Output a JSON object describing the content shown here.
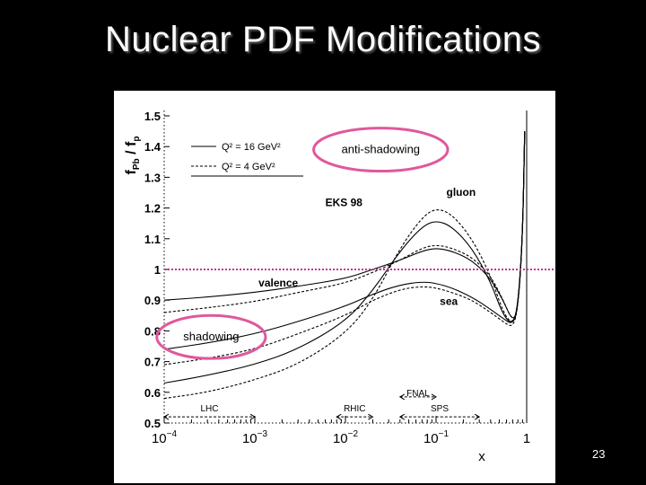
{
  "slide": {
    "title": "Nuclear PDF Modifications",
    "number": "23"
  },
  "chart_data": {
    "type": "line",
    "xscale": "log",
    "xlim": [
      0.0001,
      1
    ],
    "ylim": [
      0.5,
      1.5
    ],
    "xlabel": "x",
    "ylabel_main": "f",
    "ylabel_num_sub": "Pb",
    "ylabel_div": " / f",
    "ylabel_den_sub": "p",
    "x_ticks": [
      {
        "label_base": "10",
        "label_exp": "−4",
        "value": 0.0001
      },
      {
        "label_base": "10",
        "label_exp": "−3",
        "value": 0.001
      },
      {
        "label_base": "10",
        "label_exp": "−2",
        "value": 0.01
      },
      {
        "label_base": "10",
        "label_exp": "−1",
        "value": 0.1
      },
      {
        "label_base": "1",
        "label_exp": "",
        "value": 1
      }
    ],
    "y_ticks": [
      {
        "label": "0.5",
        "value": 0.5
      },
      {
        "label": "0.6",
        "value": 0.6
      },
      {
        "label": "0.7",
        "value": 0.7
      },
      {
        "label": "0.8",
        "value": 0.8
      },
      {
        "label": "0.9",
        "value": 0.9
      },
      {
        "label": "1",
        "value": 1.0
      },
      {
        "label": "1.1",
        "value": 1.1
      },
      {
        "label": "1.2",
        "value": 1.2
      },
      {
        "label": "1.3",
        "value": 1.3
      },
      {
        "label": "1.4",
        "value": 1.4
      },
      {
        "label": "1.5",
        "value": 1.5
      }
    ],
    "model_label": "EKS 98",
    "legend": [
      {
        "text": "Q² = 16 GeV²",
        "style": "solid"
      },
      {
        "text": "Q² = 4 GeV²",
        "style": "dashed"
      }
    ],
    "series": [
      {
        "name": "gluon",
        "style": "solid",
        "x": [
          0.0001,
          0.0003,
          0.001,
          0.003,
          0.01,
          0.02,
          0.04,
          0.07,
          0.1,
          0.15,
          0.25,
          0.4,
          0.55,
          0.7,
          0.8,
          0.9,
          0.95
        ],
        "y": [
          0.63,
          0.655,
          0.69,
          0.74,
          0.83,
          0.93,
          1.06,
          1.14,
          1.16,
          1.14,
          1.07,
          0.96,
          0.85,
          0.82,
          0.88,
          1.1,
          1.45
        ]
      },
      {
        "name": "gluon",
        "style": "dashed",
        "x": [
          0.0001,
          0.0003,
          0.001,
          0.003,
          0.01,
          0.02,
          0.04,
          0.07,
          0.1,
          0.15,
          0.25,
          0.4,
          0.55,
          0.7,
          0.8,
          0.9,
          0.95
        ],
        "y": [
          0.58,
          0.6,
          0.64,
          0.69,
          0.79,
          0.9,
          1.07,
          1.17,
          1.2,
          1.18,
          1.1,
          0.98,
          0.86,
          0.82,
          0.88,
          1.1,
          1.45
        ]
      },
      {
        "name": "valence",
        "style": "solid",
        "x": [
          0.0001,
          0.0003,
          0.001,
          0.003,
          0.01,
          0.02,
          0.04,
          0.07,
          0.1,
          0.15,
          0.25,
          0.4,
          0.55,
          0.7,
          0.8,
          0.9,
          0.95
        ],
        "y": [
          0.9,
          0.91,
          0.925,
          0.945,
          0.97,
          1.0,
          1.03,
          1.06,
          1.07,
          1.06,
          1.03,
          0.97,
          0.9,
          0.83,
          0.87,
          1.1,
          1.45
        ]
      },
      {
        "name": "valence",
        "style": "dashed",
        "x": [
          0.0001,
          0.0003,
          0.001,
          0.003,
          0.01,
          0.02,
          0.04,
          0.07,
          0.1,
          0.15,
          0.25,
          0.4,
          0.55,
          0.7,
          0.8,
          0.9,
          0.95
        ],
        "y": [
          0.86,
          0.875,
          0.895,
          0.925,
          0.955,
          0.99,
          1.03,
          1.07,
          1.08,
          1.07,
          1.04,
          0.98,
          0.9,
          0.83,
          0.87,
          1.1,
          1.45
        ]
      },
      {
        "name": "sea",
        "style": "solid",
        "x": [
          0.0001,
          0.0003,
          0.001,
          0.003,
          0.01,
          0.02,
          0.04,
          0.07,
          0.1,
          0.15,
          0.25,
          0.4,
          0.55,
          0.7,
          0.8,
          0.9,
          0.95
        ],
        "y": [
          0.74,
          0.76,
          0.79,
          0.83,
          0.88,
          0.92,
          0.95,
          0.96,
          0.955,
          0.94,
          0.91,
          0.87,
          0.84,
          0.82,
          0.87,
          1.1,
          1.45
        ]
      },
      {
        "name": "sea",
        "style": "dashed",
        "x": [
          0.0001,
          0.0003,
          0.001,
          0.003,
          0.01,
          0.02,
          0.04,
          0.07,
          0.1,
          0.15,
          0.25,
          0.4,
          0.55,
          0.7,
          0.8,
          0.9,
          0.95
        ],
        "y": [
          0.69,
          0.71,
          0.74,
          0.79,
          0.85,
          0.9,
          0.935,
          0.945,
          0.94,
          0.925,
          0.9,
          0.86,
          0.83,
          0.81,
          0.87,
          1.1,
          1.45
        ]
      }
    ],
    "curve_labels": [
      {
        "text": "gluon",
        "x": 0.13,
        "y": 1.24
      },
      {
        "text": "valence",
        "x": 0.0011,
        "y": 0.945
      },
      {
        "text": "sea",
        "x": 0.11,
        "y": 0.885
      }
    ],
    "reference_line": {
      "y": 1.0,
      "color": "#c0398b",
      "style": "dotted"
    },
    "experiment_ranges": [
      {
        "label": "LHC",
        "x": [
          0.0001,
          0.001
        ],
        "y": 0.52,
        "label_y": 0.55
      },
      {
        "label": "RHIC",
        "x": [
          0.008,
          0.02
        ],
        "y": 0.52,
        "label_y": 0.55
      },
      {
        "label": "SPS",
        "x": [
          0.04,
          0.3
        ],
        "y": 0.52,
        "label_y": 0.55
      },
      {
        "label": "FNAL",
        "x": [
          0.04,
          0.1
        ],
        "y": 0.585,
        "label_y": 0.6
      }
    ],
    "annotations": [
      {
        "text": "anti-shadowing",
        "x": 0.0245,
        "y": 1.39,
        "ellipse_rx_dec": 0.74,
        "ellipse_ry": 0.07,
        "color": "#e0589b"
      },
      {
        "text": "shadowing",
        "x": 0.00033,
        "y": 0.78,
        "ellipse_rx_dec": 0.6,
        "ellipse_ry": 0.07,
        "color": "#e0589b"
      }
    ]
  }
}
